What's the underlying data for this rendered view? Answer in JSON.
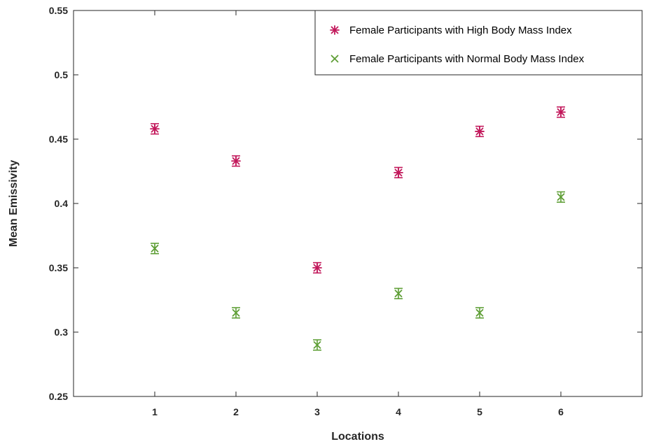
{
  "chart_data": {
    "type": "scatter",
    "xlabel": "Locations",
    "ylabel": "Mean Emissivity",
    "xlim": [
      0,
      7
    ],
    "ylim": [
      0.25,
      0.55
    ],
    "x_ticks": [
      "1",
      "2",
      "3",
      "4",
      "5",
      "6"
    ],
    "y_ticks": [
      "0.25",
      "0.3",
      "0.35",
      "0.4",
      "0.45",
      "0.5",
      "0.55"
    ],
    "grid": false,
    "legend_position": "top-right",
    "series": [
      {
        "name": "Female Participants with High Body Mass Index",
        "marker": "asterisk",
        "color": "#c2185b",
        "x": [
          1,
          2,
          3,
          4,
          5,
          6
        ],
        "y": [
          0.458,
          0.433,
          0.35,
          0.424,
          0.456,
          0.471
        ],
        "error": [
          0.004,
          0.004,
          0.004,
          0.004,
          0.004,
          0.004
        ]
      },
      {
        "name": "Female Participants with Normal Body Mass Index",
        "marker": "x",
        "color": "#5e9e35",
        "x": [
          1,
          2,
          3,
          4,
          5,
          6
        ],
        "y": [
          0.365,
          0.315,
          0.29,
          0.33,
          0.315,
          0.405
        ],
        "error": [
          0.004,
          0.004,
          0.004,
          0.004,
          0.004,
          0.004
        ]
      }
    ]
  }
}
